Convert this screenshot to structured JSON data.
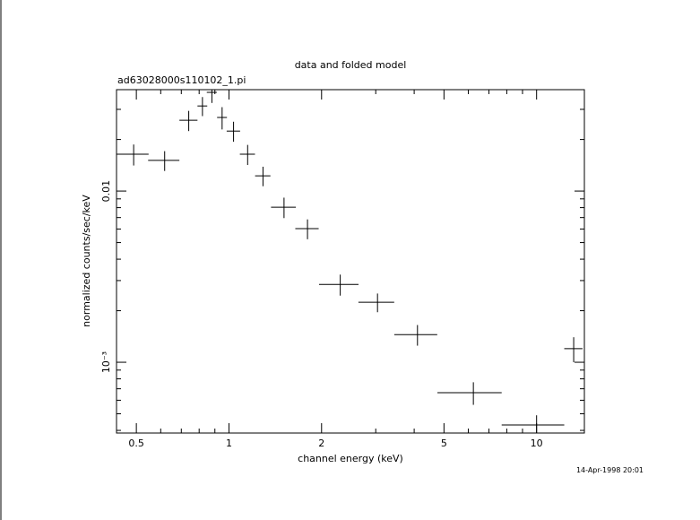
{
  "chart_data": {
    "type": "errorbar",
    "title": "data and folded model",
    "subtitle": "ad63028000s110102_1.pi",
    "x_label": "channel energy (keV)",
    "y_label": "normalized counts/sec/keV",
    "timestamp": "14-Apr-1998 20:01",
    "log_x": true,
    "log_y": true,
    "color": "#000000",
    "xlim": [
      0.431,
      14.3
    ],
    "ylim": [
      0.000386,
      0.0391
    ],
    "xticks": [
      0.5,
      1,
      2,
      5,
      10
    ],
    "xminor_ticks": [
      0.6,
      0.7,
      0.8,
      0.9,
      3,
      4,
      6,
      7,
      8,
      9
    ],
    "yticks": [
      0.01,
      {
        "value": 0.001,
        "label": "10⁻³"
      }
    ],
    "yminor_ticks": [
      0.0004,
      0.0005,
      0.0006,
      0.0007,
      0.0008,
      0.0009,
      0.002,
      0.003,
      0.004,
      0.005,
      0.006,
      0.007,
      0.008,
      0.009,
      0.02,
      0.03
    ],
    "x": [
      0.49,
      0.618,
      0.74,
      0.82,
      0.88,
      0.95,
      1.035,
      1.15,
      1.29,
      1.51,
      1.8,
      2.3,
      3.04,
      4.1,
      6.23,
      10.0,
      13.2
    ],
    "xerr": [
      0.058,
      0.072,
      0.05,
      0.03,
      0.033,
      0.035,
      0.052,
      0.065,
      0.074,
      0.14,
      0.157,
      0.337,
      0.405,
      0.654,
      1.47,
      2.3,
      0.9
    ],
    "y": [
      0.0164,
      0.0151,
      0.0259,
      0.0314,
      0.0377,
      0.0269,
      0.0224,
      0.0164,
      0.01227,
      0.00805,
      0.00603,
      0.00285,
      0.00224,
      0.00145,
      0.000664,
      0.00043,
      0.0012
    ],
    "yerr": [
      0.0023,
      0.002,
      0.0035,
      0.004,
      0.005,
      0.004,
      0.003,
      0.0022,
      0.0016,
      0.0011,
      0.0008,
      0.0004,
      0.00028,
      0.0002,
      0.0001,
      6e-05,
      0.0002
    ]
  }
}
